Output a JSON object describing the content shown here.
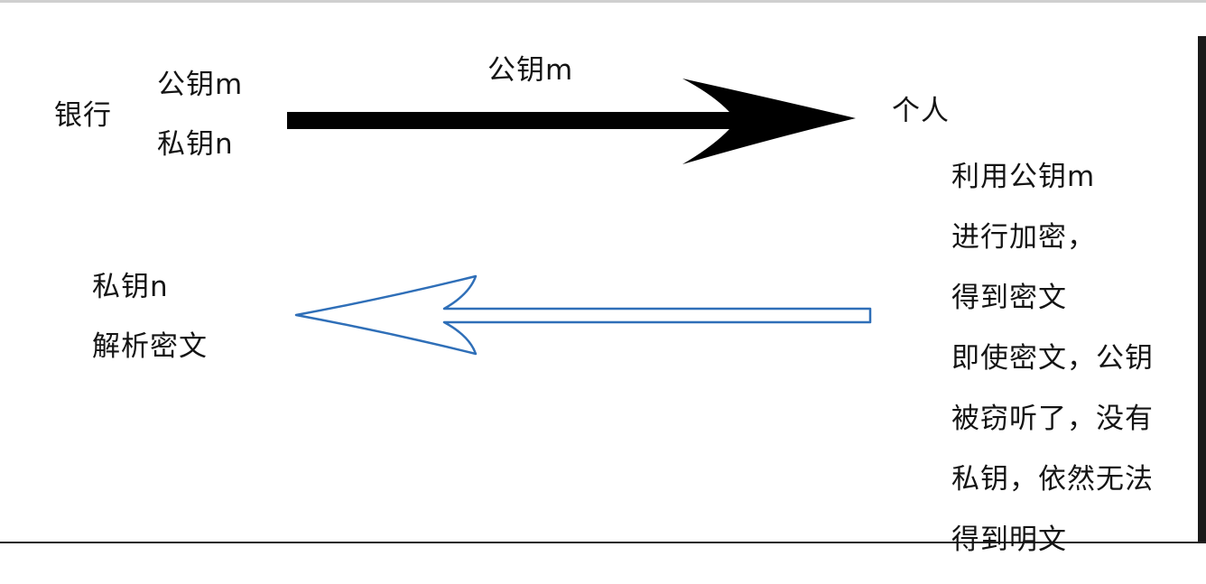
{
  "diagram": {
    "bank": {
      "label": "银行",
      "public_key": "公钥m",
      "private_key": "私钥n"
    },
    "top_arrow": {
      "label": "公钥m",
      "fill_color": "#000000",
      "direction": "right"
    },
    "person": {
      "label": "个人"
    },
    "bottom_arrow": {
      "stroke_color": "#2f6fb8",
      "fill_color": "#ffffff",
      "direction": "left"
    },
    "decrypt": {
      "key": "私钥n",
      "action": "解析密文"
    },
    "person_note": {
      "lines": [
        "利用公钥m",
        "进行加密，",
        "得到密文",
        "即使密文，公钥",
        "被窃听了，没有",
        "私钥，依然无法",
        "得到明文"
      ]
    }
  }
}
